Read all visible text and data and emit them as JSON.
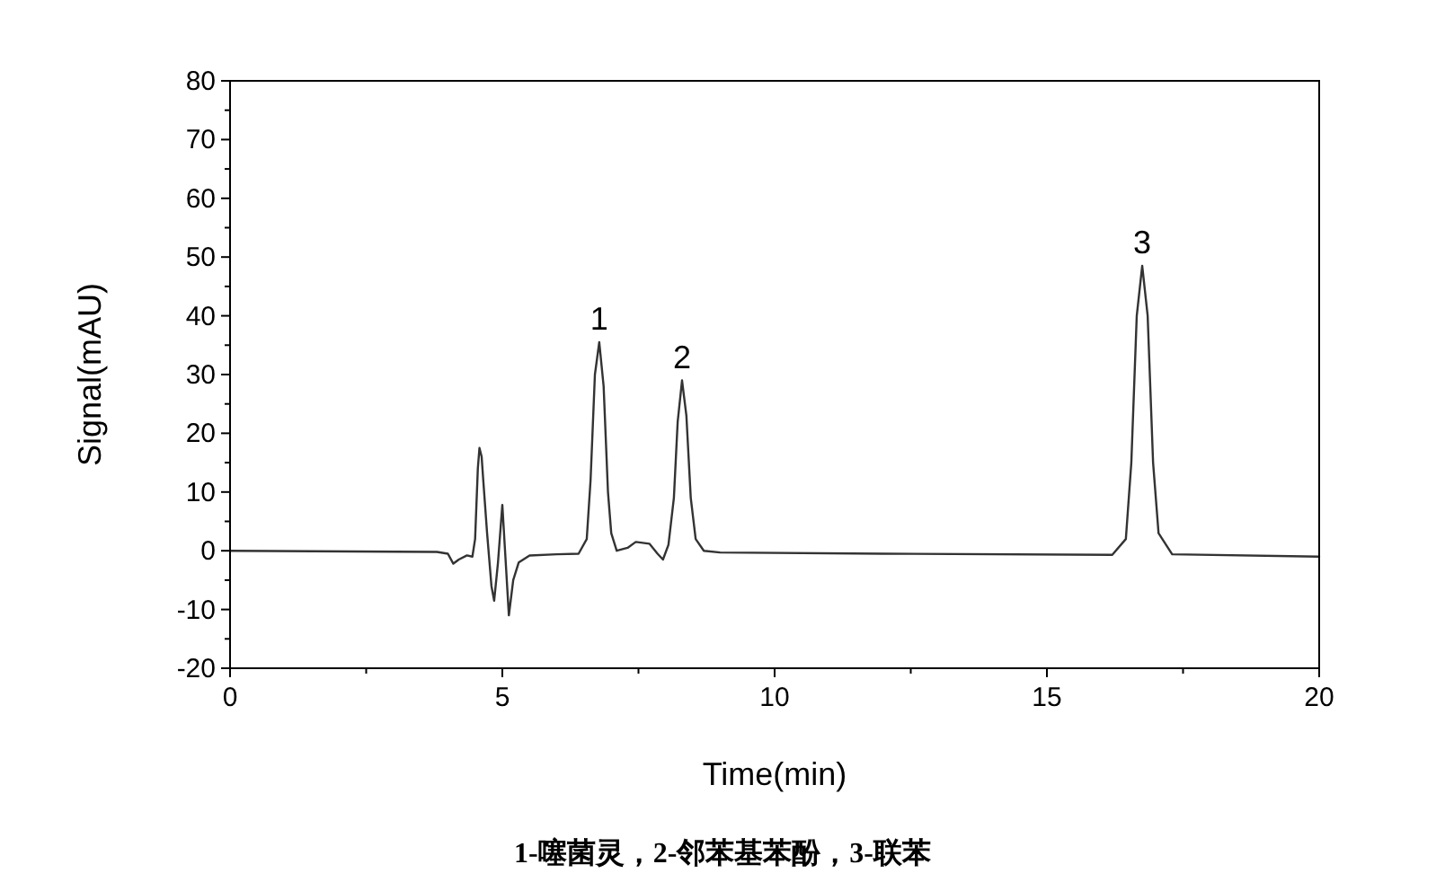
{
  "chart_data": {
    "type": "line",
    "xlabel": "Time(min)",
    "ylabel": "Signal(mAU)",
    "xlim": [
      0,
      20
    ],
    "ylim": [
      -20,
      80
    ],
    "xticks": [
      0,
      {
        "value": 2.5,
        "label": null
      },
      5,
      {
        "value": 7.5,
        "label": null
      },
      10,
      {
        "value": 12.5,
        "label": null
      },
      15,
      {
        "value": 17.5,
        "label": null
      },
      20
    ],
    "yticks": [
      -20,
      {
        "value": -15,
        "label": null
      },
      -10,
      {
        "value": -5,
        "label": null
      },
      0,
      {
        "value": 5,
        "label": null
      },
      10,
      {
        "value": 15,
        "label": null
      },
      20,
      {
        "value": 25,
        "label": null
      },
      30,
      {
        "value": 35,
        "label": null
      },
      40,
      {
        "value": 45,
        "label": null
      },
      50,
      {
        "value": 55,
        "label": null
      },
      60,
      {
        "value": 65,
        "label": null
      },
      70,
      {
        "value": 75,
        "label": null
      },
      80
    ],
    "marker": "none",
    "line_style": "solid",
    "series": [
      {
        "color": "#333333",
        "x": [
          0,
          3.8,
          4.0,
          4.1,
          4.2,
          4.35,
          4.45,
          4.5,
          4.55,
          4.58,
          4.62,
          4.65,
          4.72,
          4.8,
          4.85,
          4.92,
          5.0,
          5.05,
          5.12,
          5.2,
          5.3,
          5.5,
          6.0,
          6.4,
          6.55,
          6.62,
          6.7,
          6.78,
          6.86,
          6.94,
          7.0,
          7.1,
          7.3,
          7.45,
          7.7,
          7.85,
          7.95,
          8.05,
          8.15,
          8.22,
          8.3,
          8.38,
          8.46,
          8.55,
          8.7,
          9.0,
          12,
          16.2,
          16.45,
          16.55,
          16.65,
          16.75,
          16.85,
          16.95,
          17.05,
          17.3,
          20
        ],
        "values": [
          0,
          -0.2,
          -0.5,
          -2.2,
          -1.5,
          -0.8,
          -1,
          2,
          14,
          17.5,
          16,
          12,
          3,
          -6,
          -8.5,
          -2,
          7.8,
          0,
          -11,
          -5,
          -2,
          -0.8,
          -0.6,
          -0.5,
          2,
          12,
          30,
          35.5,
          28,
          10,
          3,
          0,
          0.5,
          1.5,
          1.2,
          -0.5,
          -1.5,
          1,
          9,
          22,
          29,
          23,
          9,
          2,
          0,
          -0.3,
          -0.5,
          -0.7,
          2,
          15,
          40,
          48.5,
          40,
          15,
          3,
          -0.6,
          -1.0
        ]
      }
    ],
    "annotations": [
      {
        "text": "1",
        "x": 6.78,
        "y": 35.5
      },
      {
        "text": "2",
        "x": 8.3,
        "y": 29
      },
      {
        "text": "3",
        "x": 16.75,
        "y": 48.5
      },
      "1-噻菌灵，2-邻苯基苯酚，3-联苯"
    ]
  }
}
